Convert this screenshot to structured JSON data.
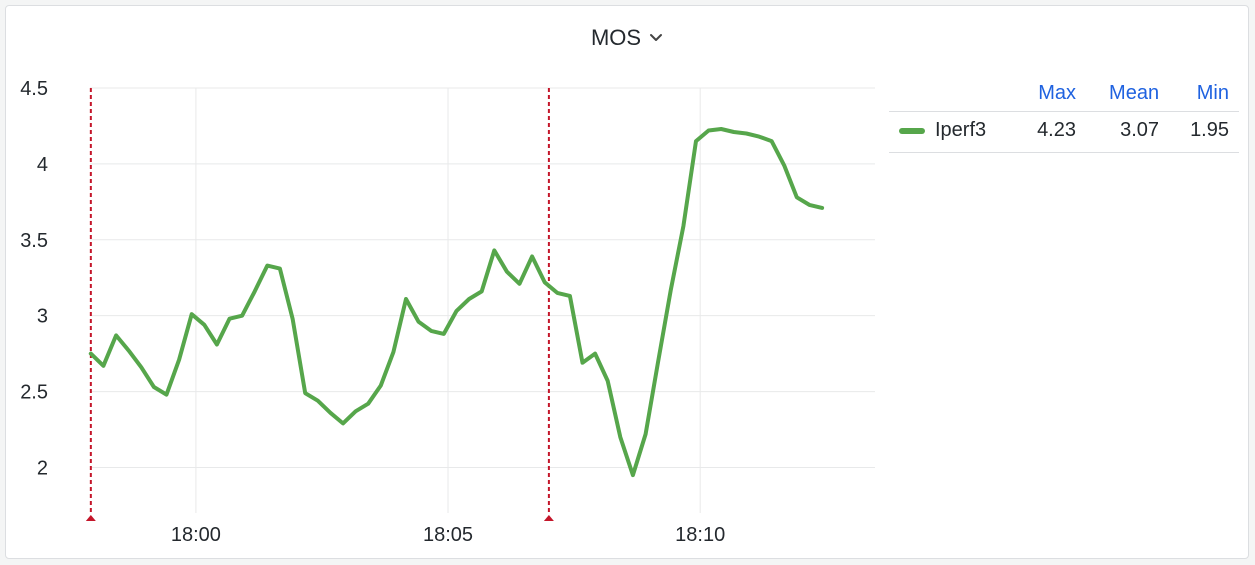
{
  "panel": {
    "title": "MOS"
  },
  "colors": {
    "series": "#56a64b",
    "annotation": "#c4162a",
    "grid": "#e8e9ea",
    "legend_header": "#1f62e0"
  },
  "icons": {
    "title_menu": "chevron-down-icon"
  },
  "legend": {
    "columns": [
      "Max",
      "Mean",
      "Min"
    ],
    "rows": [
      {
        "name": "Iperf3",
        "max": "4.23",
        "mean": "3.07",
        "min": "1.95"
      }
    ]
  },
  "chart_data": {
    "type": "line",
    "ylim": [
      1.7,
      4.5
    ],
    "yticks": [
      2,
      2.5,
      3,
      3.5,
      4,
      4.5
    ],
    "ytick_labels": [
      "2",
      "2.5",
      "3",
      "3.5",
      "4",
      "4.5"
    ],
    "xlim": [
      "17:57:54",
      "18:13:28"
    ],
    "xticks": [
      "18:00",
      "18:05",
      "18:10"
    ],
    "annotations": [
      "17:57:55",
      "18:07:00"
    ],
    "series": [
      {
        "name": "Iperf3",
        "points": [
          [
            "17:57:55",
            2.75
          ],
          [
            "17:58:10",
            2.67
          ],
          [
            "17:58:25",
            2.87
          ],
          [
            "17:58:40",
            2.77
          ],
          [
            "17:58:55",
            2.66
          ],
          [
            "17:59:10",
            2.53
          ],
          [
            "17:59:25",
            2.48
          ],
          [
            "17:59:40",
            2.71
          ],
          [
            "17:59:55",
            3.01
          ],
          [
            "18:00:10",
            2.94
          ],
          [
            "18:00:25",
            2.81
          ],
          [
            "18:00:40",
            2.98
          ],
          [
            "18:00:55",
            3.0
          ],
          [
            "18:01:10",
            3.16
          ],
          [
            "18:01:25",
            3.33
          ],
          [
            "18:01:40",
            3.31
          ],
          [
            "18:01:55",
            2.98
          ],
          [
            "18:02:10",
            2.49
          ],
          [
            "18:02:25",
            2.44
          ],
          [
            "18:02:40",
            2.36
          ],
          [
            "18:02:55",
            2.29
          ],
          [
            "18:03:10",
            2.37
          ],
          [
            "18:03:25",
            2.42
          ],
          [
            "18:03:40",
            2.54
          ],
          [
            "18:03:55",
            2.76
          ],
          [
            "18:04:10",
            3.11
          ],
          [
            "18:04:25",
            2.96
          ],
          [
            "18:04:40",
            2.9
          ],
          [
            "18:04:55",
            2.88
          ],
          [
            "18:05:10",
            3.03
          ],
          [
            "18:05:25",
            3.11
          ],
          [
            "18:05:40",
            3.16
          ],
          [
            "18:05:55",
            3.43
          ],
          [
            "18:06:10",
            3.29
          ],
          [
            "18:06:25",
            3.21
          ],
          [
            "18:06:40",
            3.39
          ],
          [
            "18:06:55",
            3.22
          ],
          [
            "18:07:10",
            3.15
          ],
          [
            "18:07:25",
            3.13
          ],
          [
            "18:07:40",
            2.69
          ],
          [
            "18:07:55",
            2.75
          ],
          [
            "18:08:10",
            2.57
          ],
          [
            "18:08:25",
            2.2
          ],
          [
            "18:08:40",
            1.95
          ],
          [
            "18:08:55",
            2.22
          ],
          [
            "18:09:10",
            2.7
          ],
          [
            "18:09:25",
            3.17
          ],
          [
            "18:09:40",
            3.59
          ],
          [
            "18:09:55",
            4.15
          ],
          [
            "18:10:10",
            4.22
          ],
          [
            "18:10:25",
            4.23
          ],
          [
            "18:10:40",
            4.21
          ],
          [
            "18:10:55",
            4.2
          ],
          [
            "18:11:10",
            4.18
          ],
          [
            "18:11:25",
            4.15
          ],
          [
            "18:11:40",
            3.99
          ],
          [
            "18:11:55",
            3.78
          ],
          [
            "18:12:10",
            3.73
          ],
          [
            "18:12:25",
            3.71
          ]
        ]
      }
    ]
  }
}
